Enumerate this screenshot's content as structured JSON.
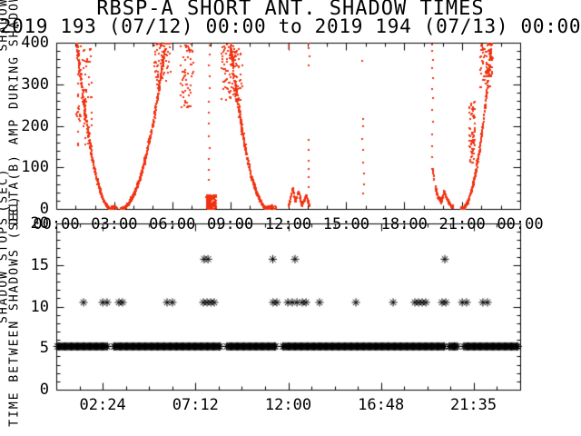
{
  "title": "RBSP-A SHORT ANT. SHADOW TIMES",
  "subtitle": "2019 193 (07/12) 00:00 to 2019 194 (07/13) 00:00",
  "colors": {
    "background": "#ffffff",
    "axis": "#000000",
    "scatter_red": "#f03210",
    "marker_black": "#000000"
  },
  "top_panel": {
    "ylabel_line1": "DELTA(B) AMP DURING SHADOW",
    "ylabel_frag_shadow": "SHADOW",
    "ylabel_frag_sec": "(SEC)",
    "ylim": [
      0,
      400
    ],
    "ytick_values": [
      0,
      100,
      200,
      300,
      400
    ],
    "ytick_labels": [
      "0",
      "100",
      "200",
      "300",
      "400"
    ],
    "y_minor_step": 20,
    "xlim_hours": [
      0,
      24
    ],
    "xtick_hours": [
      0,
      3,
      6,
      9,
      12,
      15,
      18,
      21,
      24
    ],
    "xtick_labels": [
      "00:00",
      "03:00",
      "06:00",
      "09:00",
      "12:00",
      "15:00",
      "18:00",
      "21:00",
      "00:00"
    ],
    "x_minor_step_hours": 1
  },
  "bottom_panel": {
    "ylabel_line1": "TIME BETWEEN SHADOWS (SEC)",
    "ylabel_frag": "SHADOW STOPS",
    "ylim": [
      0,
      20
    ],
    "ytick_values": [
      0,
      5,
      10,
      15,
      20
    ],
    "ytick_labels": [
      "0",
      "5",
      "10",
      "15",
      "20"
    ],
    "y_minor_step": 1,
    "xlim_hours": [
      0,
      24
    ],
    "xtick_hours": [
      2.4,
      7.2,
      12.0,
      16.8,
      21.5833
    ],
    "xtick_labels": [
      "02:24",
      "07:12",
      "12:00",
      "16:48",
      "21:35"
    ],
    "x_minor_step_hours": 1.2
  },
  "chart_data": {
    "type": "scatter",
    "panels": [
      {
        "name": "shadow-dwell-amplitude",
        "marker": "dot",
        "color": "#f03210",
        "clusters": [
          {
            "kind": "curve",
            "h0": 1.02,
            "h1": 2.82,
            "s0": 400,
            "s1": 0,
            "exp": 2.0,
            "spread0": 38,
            "spread1": 4,
            "count": 300,
            "seed": 11
          },
          {
            "kind": "box",
            "h0": 1.0,
            "h1": 1.8,
            "s0": 150,
            "s1": 400,
            "count": 80,
            "seed": 19
          },
          {
            "kind": "box",
            "h0": 2.8,
            "h1": 3.12,
            "s0": 0,
            "s1": 8,
            "count": 30,
            "seed": 12
          },
          {
            "kind": "curve",
            "h0": 5.62,
            "h1": 3.28,
            "s0": 400,
            "s1": 0,
            "exp": 2.0,
            "spread0": 26,
            "spread1": 5,
            "count": 420,
            "seed": 13
          },
          {
            "kind": "box",
            "h0": 5.0,
            "h1": 5.9,
            "s0": 300,
            "s1": 400,
            "count": 60,
            "seed": 20
          },
          {
            "kind": "box",
            "h0": 6.35,
            "h1": 7.05,
            "s0": 245,
            "s1": 400,
            "count": 60,
            "seed": 14
          },
          {
            "kind": "vline",
            "h": 7.86,
            "s_list": [
              70,
              95,
              120,
              150,
              175,
              205,
              230,
              260,
              290,
              320,
              345,
              370,
              392
            ],
            "jitter": 0.05,
            "seed": 15
          },
          {
            "kind": "box",
            "h0": 7.72,
            "h1": 8.22,
            "s0": 0,
            "s1": 34,
            "count": 120,
            "seed": 16
          },
          {
            "kind": "box",
            "h0": 7.74,
            "h1": 7.95,
            "s0": 0,
            "s1": 28,
            "count": 70,
            "seed": 17
          },
          {
            "kind": "curve",
            "h0": 8.95,
            "h1": 10.95,
            "s0": 400,
            "s1": 0,
            "exp": 2.0,
            "spread0": 34,
            "spread1": 4,
            "count": 380,
            "seed": 18
          },
          {
            "kind": "box",
            "h0": 8.45,
            "h1": 9.6,
            "s0": 260,
            "s1": 400,
            "count": 110,
            "seed": 21
          },
          {
            "kind": "box",
            "h0": 10.9,
            "h1": 11.35,
            "s0": 0,
            "s1": 9,
            "count": 40,
            "seed": 22
          },
          {
            "kind": "poly",
            "pts": [
              [
                11.98,
                6
              ],
              [
                12.2,
                50
              ],
              [
                12.32,
                18
              ],
              [
                12.5,
                42
              ],
              [
                12.66,
                10
              ],
              [
                12.9,
                32
              ],
              [
                13.05,
                8
              ]
            ],
            "spread": 7,
            "count": 150,
            "seed": 23
          },
          {
            "kind": "vline",
            "h": 13.02,
            "s_list": [
              55,
              75,
              95,
              115,
              140,
              165,
              345,
              368,
              385,
              398
            ],
            "jitter": 0.05,
            "seed": 24
          },
          {
            "kind": "vline",
            "h": 11.98,
            "s_list": [
              388,
              397
            ],
            "jitter": 0.03,
            "seed": 25
          },
          {
            "kind": "vline",
            "h": 15.82,
            "s_list": [
              38,
              60,
              85,
              110,
              140,
              170,
              200,
              215,
              355
            ],
            "jitter": 0.05,
            "seed": 26
          },
          {
            "kind": "vline",
            "h": 19.42,
            "s_list": [
              125,
              150,
              180,
              210,
              240,
              265,
              290,
              315,
              340,
              360,
              380,
              395
            ],
            "jitter": 0.05,
            "seed": 27
          },
          {
            "kind": "poly",
            "pts": [
              [
                19.42,
                95
              ],
              [
                19.58,
                50
              ],
              [
                19.72,
                28
              ],
              [
                19.88,
                16
              ],
              [
                20.02,
                42
              ],
              [
                20.15,
                26
              ],
              [
                20.32,
                10
              ],
              [
                20.5,
                4
              ]
            ],
            "spread": 7,
            "count": 190,
            "seed": 28
          },
          {
            "kind": "curve",
            "h0": 22.48,
            "h1": 20.92,
            "s0": 400,
            "s1": 0,
            "exp": 2.0,
            "spread0": 22,
            "spread1": 5,
            "count": 330,
            "seed": 29
          },
          {
            "kind": "box",
            "h0": 21.3,
            "h1": 21.62,
            "s0": 110,
            "s1": 260,
            "count": 70,
            "seed": 30
          },
          {
            "kind": "box",
            "h0": 21.9,
            "h1": 22.55,
            "s0": 290,
            "s1": 400,
            "count": 70,
            "seed": 31
          }
        ]
      },
      {
        "name": "time-between-shadows",
        "marker": "asterisk",
        "color": "#000000",
        "band": {
          "value": 5.2,
          "step_hours": 0.055,
          "segments": [
            [
              0.06,
              2.66
            ],
            [
              2.98,
              8.53
            ],
            [
              8.82,
              11.4
            ],
            [
              11.72,
              20.08
            ],
            [
              20.32,
              20.78
            ],
            [
              21.08,
              23.92
            ]
          ]
        },
        "rows": [
          {
            "value": 10.5,
            "hours": [
              1.41,
              2.4,
              2.63,
              3.24,
              3.43,
              5.73,
              6.01,
              7.61,
              7.8,
              7.99,
              8.17,
              11.22,
              11.41,
              11.98,
              12.21,
              12.45,
              12.73,
              12.92,
              13.62,
              15.5,
              17.43,
              18.55,
              18.74,
              18.93,
              19.12,
              19.96,
              20.15,
              21.0,
              21.23,
              22.07,
              22.31
            ]
          },
          {
            "value": 15.7,
            "hours": [
              7.65,
              7.85,
              11.2,
              12.35,
              20.1
            ]
          }
        ]
      }
    ]
  }
}
